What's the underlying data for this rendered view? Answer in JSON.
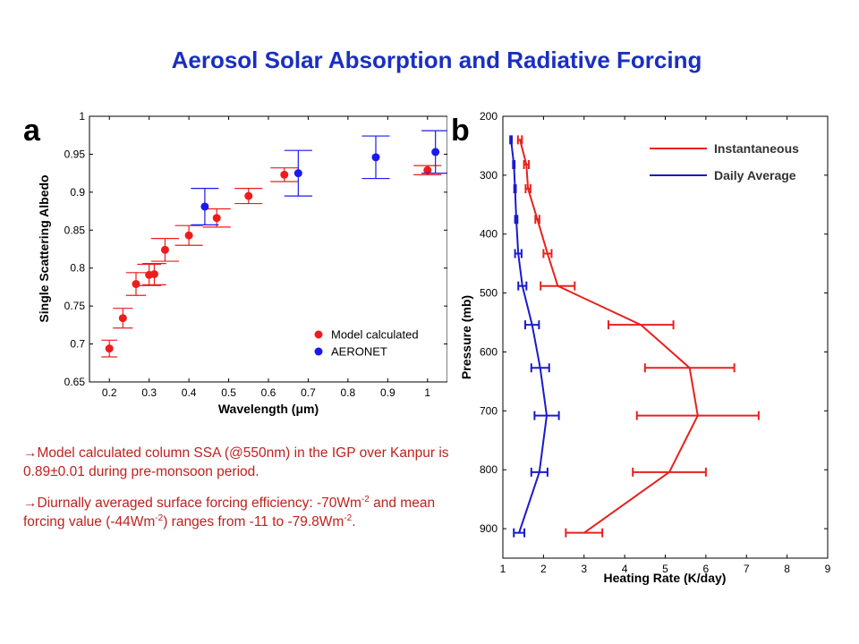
{
  "slide": {
    "title": "Aerosol Solar Absorption and Radiative Forcing",
    "notes": {
      "note1": {
        "arrow": "→",
        "text": "Model calculated column SSA (@550nm) in the IGP over Kanpur is 0.89±0.01 during pre-monsoon period."
      },
      "note2": {
        "arrow": "→",
        "part1": "Diurnally averaged surface forcing efficiency:   -70Wm",
        "sup1": "-2",
        "part2": " and mean forcing value (-44Wm",
        "sup2": "-2",
        "part3": ") ranges from -11 to -79.8Wm",
        "sup3": "-2",
        "part4": "."
      }
    }
  },
  "chart_data": [
    {
      "panel": "a",
      "type": "scatter",
      "xlabel": "Wavelength (μm)",
      "ylabel": "Single Scattering Albedo",
      "xlim": [
        0.15,
        1.05
      ],
      "ylim": [
        0.65,
        1.0
      ],
      "x_ticks": [
        0.2,
        0.3,
        0.4,
        0.5,
        0.6,
        0.7,
        0.8,
        0.9,
        1.0
      ],
      "x_tick_labels": [
        "0.2",
        "0.3",
        "0.4",
        "0.5",
        "0.6",
        "0.7",
        "0.8",
        "0.9",
        "1"
      ],
      "y_ticks": [
        0.65,
        0.7,
        0.75,
        0.8,
        0.85,
        0.9,
        0.95,
        1.0
      ],
      "y_tick_labels": [
        "0.65",
        "0.7",
        "0.75",
        "0.8",
        "0.85",
        "0.9",
        "0.95",
        "1"
      ],
      "grid": false,
      "legend_position": "bottom-right",
      "series": [
        {
          "name": "Model calculated",
          "color": "#ee1c1c",
          "points": [
            {
              "x": 0.2,
              "y": 0.694,
              "xerr": 0.02,
              "yerr": 0.011
            },
            {
              "x": 0.234,
              "y": 0.734,
              "xerr": 0.025,
              "yerr": 0.013
            },
            {
              "x": 0.267,
              "y": 0.779,
              "xerr": 0.025,
              "yerr": 0.015
            },
            {
              "x": 0.3,
              "y": 0.791,
              "xerr": 0.03,
              "yerr": 0.014
            },
            {
              "x": 0.313,
              "y": 0.792,
              "xerr": 0.03,
              "yerr": 0.014
            },
            {
              "x": 0.34,
              "y": 0.824,
              "xerr": 0.035,
              "yerr": 0.015
            },
            {
              "x": 0.4,
              "y": 0.843,
              "xerr": 0.035,
              "yerr": 0.013
            },
            {
              "x": 0.47,
              "y": 0.866,
              "xerr": 0.035,
              "yerr": 0.012
            },
            {
              "x": 0.55,
              "y": 0.895,
              "xerr": 0.035,
              "yerr": 0.01
            },
            {
              "x": 0.64,
              "y": 0.923,
              "xerr": 0.035,
              "yerr": 0.009
            },
            {
              "x": 1.0,
              "y": 0.929,
              "xerr": 0.035,
              "yerr": 0.006
            }
          ]
        },
        {
          "name": "AERONET",
          "color": "#1a1aee",
          "points": [
            {
              "x": 0.44,
              "y": 0.881,
              "xerr": 0.035,
              "yerr": 0.024
            },
            {
              "x": 0.675,
              "y": 0.925,
              "xerr": 0.035,
              "yerr": 0.03
            },
            {
              "x": 0.87,
              "y": 0.946,
              "xerr": 0.035,
              "yerr": 0.028
            },
            {
              "x": 1.02,
              "y": 0.953,
              "xerr": 0.035,
              "yerr": 0.028
            }
          ]
        }
      ]
    },
    {
      "panel": "b",
      "type": "line",
      "xlabel": "Heating Rate (K/day)",
      "ylabel": "Pressure (mb)",
      "xlim": [
        1,
        9
      ],
      "ylim": [
        200,
        950
      ],
      "y_inverted": true,
      "x_ticks": [
        1,
        2,
        3,
        4,
        5,
        6,
        7,
        8,
        9
      ],
      "x_tick_labels": [
        "1",
        "2",
        "3",
        "4",
        "5",
        "6",
        "7",
        "8",
        "9"
      ],
      "y_ticks": [
        200,
        300,
        400,
        500,
        600,
        700,
        800,
        900
      ],
      "y_tick_labels": [
        "200",
        "300",
        "400",
        "500",
        "600",
        "700",
        "800",
        "900"
      ],
      "grid": false,
      "legend_position": "top-right",
      "series": [
        {
          "name": "Instantaneous",
          "color": "#e8211d",
          "points": [
            {
              "pressure": 240,
              "value": 1.42,
              "err": 0.05
            },
            {
              "pressure": 282,
              "value": 1.58,
              "err": 0.06
            },
            {
              "pressure": 323,
              "value": 1.62,
              "err": 0.06
            },
            {
              "pressure": 375,
              "value": 1.85,
              "err": 0.05
            },
            {
              "pressure": 433,
              "value": 2.1,
              "err": 0.1
            },
            {
              "pressure": 488,
              "value": 2.35,
              "err": 0.42
            },
            {
              "pressure": 554,
              "value": 4.4,
              "err": 0.8
            },
            {
              "pressure": 627,
              "value": 5.6,
              "err": 1.1
            },
            {
              "pressure": 708,
              "value": 5.8,
              "err": 1.5
            },
            {
              "pressure": 804,
              "value": 5.1,
              "err": 0.9
            },
            {
              "pressure": 907,
              "value": 3.0,
              "err": 0.45
            }
          ]
        },
        {
          "name": "Daily Average",
          "color": "#1a1acc",
          "points": [
            {
              "pressure": 240,
              "value": 1.2,
              "err": 0.02
            },
            {
              "pressure": 282,
              "value": 1.27,
              "err": 0.02
            },
            {
              "pressure": 323,
              "value": 1.3,
              "err": 0.02
            },
            {
              "pressure": 375,
              "value": 1.33,
              "err": 0.03
            },
            {
              "pressure": 433,
              "value": 1.38,
              "err": 0.08
            },
            {
              "pressure": 488,
              "value": 1.48,
              "err": 0.1
            },
            {
              "pressure": 554,
              "value": 1.72,
              "err": 0.17
            },
            {
              "pressure": 627,
              "value": 1.92,
              "err": 0.22
            },
            {
              "pressure": 708,
              "value": 2.08,
              "err": 0.3
            },
            {
              "pressure": 804,
              "value": 1.9,
              "err": 0.2
            },
            {
              "pressure": 907,
              "value": 1.4,
              "err": 0.13
            }
          ]
        }
      ]
    }
  ]
}
